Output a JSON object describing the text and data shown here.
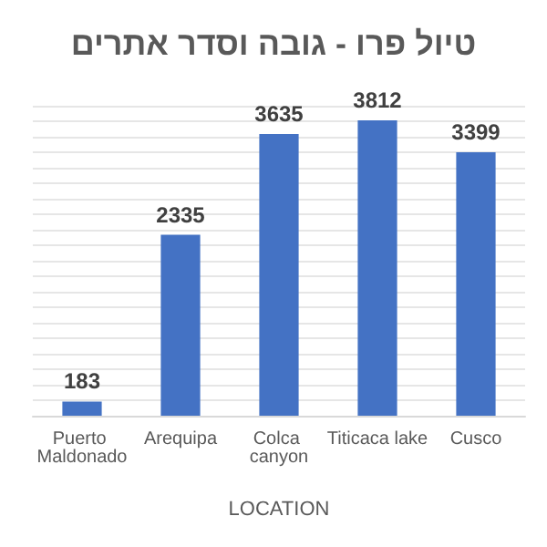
{
  "chart_data": {
    "type": "bar",
    "title": "טיול פרו - גובה וסדר אתרים",
    "xlabel": "LOCATION",
    "categories": [
      "Puerto Maldonado",
      "Arequipa",
      "Colca canyon",
      "Titicaca lake",
      "Cusco"
    ],
    "values": [
      183,
      2335,
      3635,
      3812,
      3399
    ],
    "color": "#4472c4",
    "data_labels": true,
    "grid": "y",
    "tick_labels": "x"
  }
}
